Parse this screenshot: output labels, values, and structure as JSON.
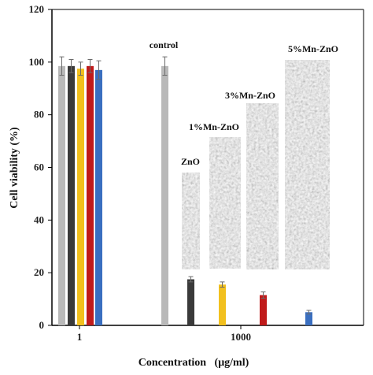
{
  "chart_data": {
    "type": "bar",
    "xlabel": "Concentration   (μg/ml)",
    "ylabel": "Cell viability  (%)",
    "ylim": [
      0,
      120
    ],
    "yticks": [
      0,
      20,
      40,
      60,
      80,
      100,
      120
    ],
    "grid": false,
    "legend": "none",
    "categories": [
      "1",
      "1000"
    ],
    "series": [
      {
        "color": "#b9b9b9",
        "values": [
          98.5,
          98.5
        ],
        "errors": [
          3.5,
          3.5
        ]
      },
      {
        "color": "#3a3a3a",
        "values": [
          98.5,
          17.5
        ],
        "errors": [
          2.5,
          1.0
        ]
      },
      {
        "color": "#f2c01e",
        "values": [
          97.5,
          15.5
        ],
        "errors": [
          2.5,
          1.0
        ]
      },
      {
        "color": "#c01a1a",
        "values": [
          98.5,
          11.5
        ],
        "errors": [
          2.5,
          1.2
        ]
      },
      {
        "color": "#3a6fc0",
        "values": [
          97.0,
          5.0
        ],
        "errors": [
          3.5,
          0.7
        ]
      }
    ],
    "annotations": [
      "control",
      "ZnO",
      "1%Mn-ZnO",
      "3%Mn-ZnO",
      "5%Mn-ZnO"
    ]
  }
}
